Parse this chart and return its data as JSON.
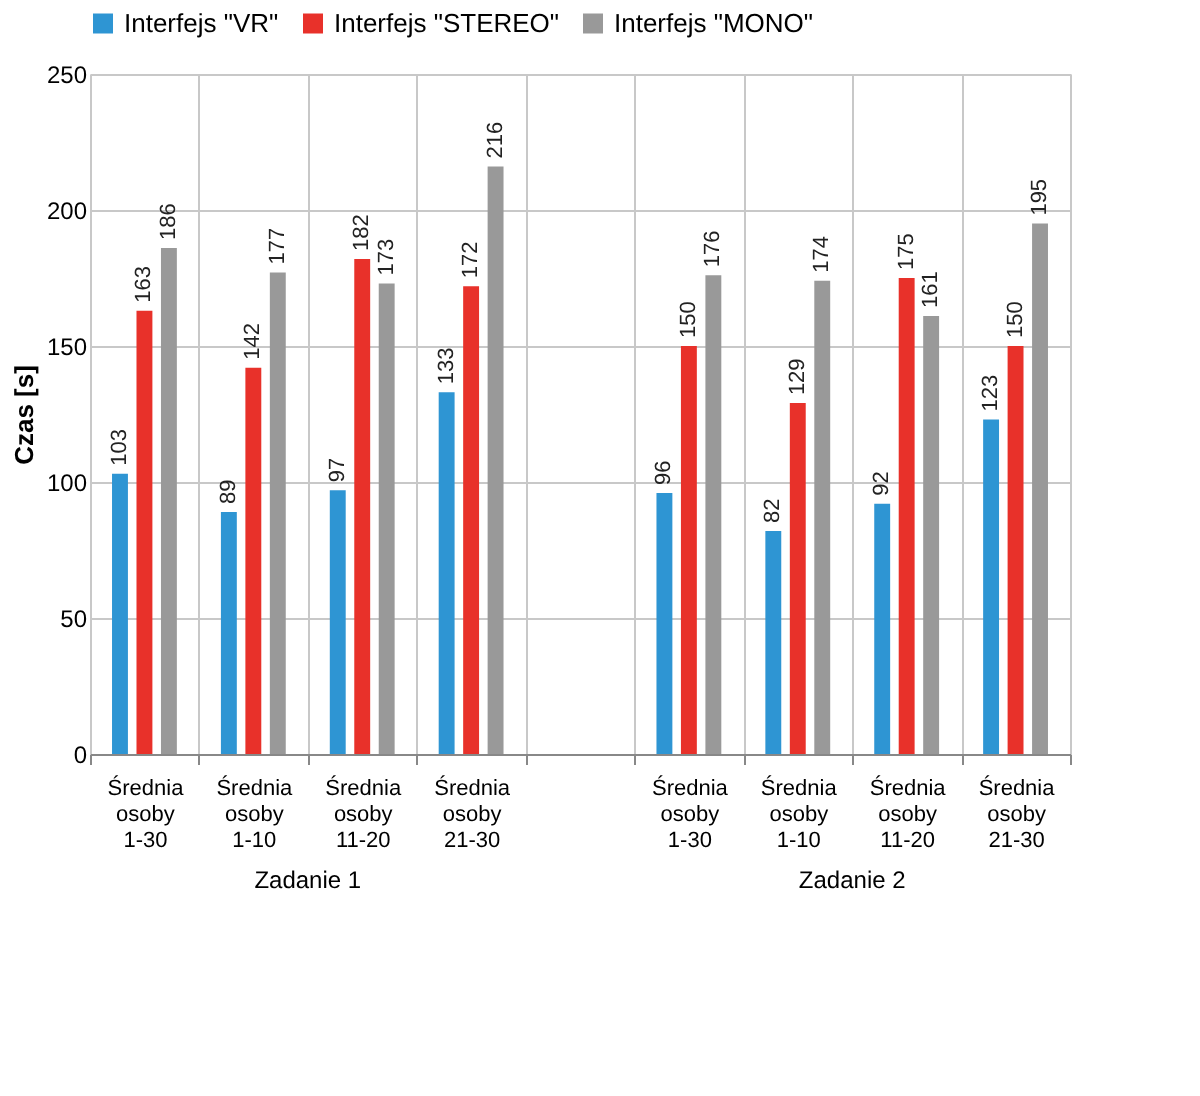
{
  "chart_data": {
    "type": "bar",
    "ylabel": "Czas [s]",
    "categories": [
      "Średnia osoby 1-30",
      "Średnia osoby 1-10",
      "Średnia osoby 11-20",
      "Średnia osoby 21-30",
      null,
      "Średnia osoby 1-30",
      "Średnia osoby 1-10",
      "Średnia osoby 11-20",
      "Średnia osoby 21-30"
    ],
    "series": [
      {
        "name": "Interfejs \"VR\"",
        "color": "#2e95d3",
        "values": [
          103,
          89,
          97,
          133,
          null,
          96,
          82,
          92,
          123
        ]
      },
      {
        "name": "Interfejs \"STEREO\"",
        "color": "#e8312a",
        "values": [
          163,
          142,
          182,
          172,
          null,
          150,
          129,
          175,
          150
        ]
      },
      {
        "name": "Interfejs \"MONO\"",
        "color": "#999999",
        "values": [
          186,
          177,
          173,
          216,
          null,
          176,
          174,
          161,
          195
        ]
      }
    ],
    "ylim": [
      0,
      250
    ],
    "yticks": [
      0,
      50,
      100,
      150,
      200,
      250
    ],
    "grid": true,
    "legend": "top",
    "data_labels": true,
    "annotations": [
      "Zadanie 1",
      "Zadanie 2"
    ]
  }
}
